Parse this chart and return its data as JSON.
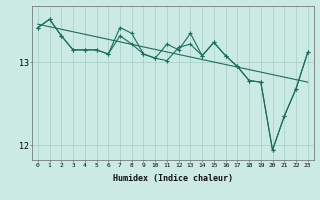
{
  "xlabel": "Humidex (Indice chaleur)",
  "ylabel": "",
  "background_color": "#cceae4",
  "grid_color": "#aad4cc",
  "line_color": "#1a6e60",
  "xlim": [
    -0.5,
    23.5
  ],
  "ylim": [
    11.82,
    13.68
  ],
  "yticks": [
    12,
    13
  ],
  "xticks": [
    0,
    1,
    2,
    3,
    4,
    5,
    6,
    7,
    8,
    9,
    10,
    11,
    12,
    13,
    14,
    15,
    16,
    17,
    18,
    19,
    20,
    21,
    22,
    23
  ],
  "series1_x": [
    0,
    1,
    2,
    3,
    4,
    5,
    6,
    7,
    8,
    9,
    10,
    11,
    12,
    13,
    14,
    15,
    16,
    17,
    18,
    19,
    20,
    21,
    22,
    23
  ],
  "series1_y": [
    13.42,
    13.52,
    13.32,
    13.15,
    13.15,
    13.15,
    13.1,
    13.42,
    13.35,
    13.1,
    13.05,
    13.22,
    13.15,
    13.35,
    13.08,
    13.24,
    13.08,
    12.95,
    12.78,
    12.76,
    11.94,
    12.35,
    12.68,
    13.12
  ],
  "series2_x": [
    0,
    1,
    2,
    3,
    4,
    5,
    6,
    7,
    8,
    9,
    10,
    11,
    12,
    13,
    14,
    15,
    16,
    17,
    18,
    19,
    20,
    21,
    22,
    23
  ],
  "series2_y": [
    13.42,
    13.52,
    13.32,
    13.15,
    13.15,
    13.15,
    13.1,
    13.32,
    13.22,
    13.1,
    13.05,
    13.02,
    13.18,
    13.22,
    13.08,
    13.24,
    13.08,
    12.95,
    12.78,
    12.76,
    11.94,
    12.35,
    12.68,
    13.12
  ],
  "trend_x": [
    0,
    23
  ],
  "trend_y": [
    13.46,
    12.76
  ],
  "marker_size": 3,
  "linewidth": 0.8
}
